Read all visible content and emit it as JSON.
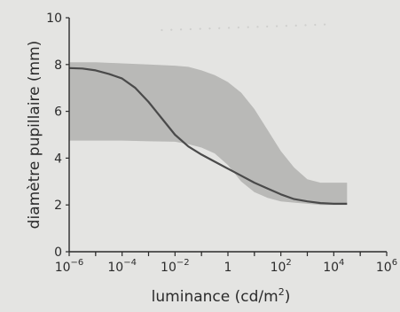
{
  "colors": {
    "paper": "#e4e4e2",
    "band_fill": "#b9b9b7",
    "curve": "#4a4a4a",
    "axis": "#2b2b2b",
    "text": "#2b2b2b"
  },
  "chart_data": {
    "type": "area",
    "title": "",
    "xlabel": "luminance (cd/m²)",
    "ylabel": "diamètre pupillaire (mm)",
    "x_scale": "log",
    "xlim_exponent": [
      -6,
      6
    ],
    "ylim": [
      0,
      10
    ],
    "xticks": [
      {
        "base": "10",
        "exp": "−6",
        "value": -6
      },
      {
        "base": "10",
        "exp": "−4",
        "value": -4
      },
      {
        "base": "10",
        "exp": "−2",
        "value": -2
      },
      {
        "base": "1",
        "exp": "",
        "value": 0
      },
      {
        "base": "10",
        "exp": "2",
        "value": 2
      },
      {
        "base": "10",
        "exp": "4",
        "value": 4
      },
      {
        "base": "10",
        "exp": "6",
        "value": 6
      }
    ],
    "yticks": [
      {
        "label": "0",
        "value": 0
      },
      {
        "label": "2",
        "value": 2
      },
      {
        "label": "4",
        "value": 4
      },
      {
        "label": "6",
        "value": 6
      },
      {
        "label": "8",
        "value": 8
      },
      {
        "label": "10",
        "value": 10
      }
    ],
    "grid": false,
    "series": [
      {
        "kind": "line",
        "x_log10": [
          -6,
          -5.5,
          -5,
          -4.5,
          -4,
          -3.5,
          -3,
          -2.5,
          -2,
          -1.5,
          -1,
          -0.5,
          0,
          0.5,
          1,
          1.5,
          2,
          2.5,
          3,
          3.5,
          4,
          4.5
        ],
        "y": [
          7.85,
          7.83,
          7.75,
          7.6,
          7.4,
          7.0,
          6.4,
          5.7,
          5.0,
          4.5,
          4.15,
          3.85,
          3.55,
          3.25,
          2.95,
          2.7,
          2.45,
          2.25,
          2.15,
          2.08,
          2.05,
          2.05
        ]
      },
      {
        "kind": "band",
        "x_log10": [
          -6,
          -5,
          -4,
          -3,
          -2,
          -1.5,
          -1,
          -0.5,
          0,
          0.5,
          1,
          1.5,
          2,
          2.5,
          3,
          3.5,
          4,
          4.5
        ],
        "upper": [
          8.1,
          8.1,
          8.05,
          8.0,
          7.95,
          7.9,
          7.75,
          7.55,
          7.25,
          6.8,
          6.1,
          5.2,
          4.3,
          3.6,
          3.1,
          2.95,
          2.95,
          2.95
        ],
        "lower": [
          4.75,
          4.75,
          4.75,
          4.72,
          4.7,
          4.6,
          4.45,
          4.2,
          3.7,
          3.0,
          2.55,
          2.3,
          2.15,
          2.1,
          2.05,
          2.0,
          2.0,
          2.0
        ]
      }
    ]
  }
}
